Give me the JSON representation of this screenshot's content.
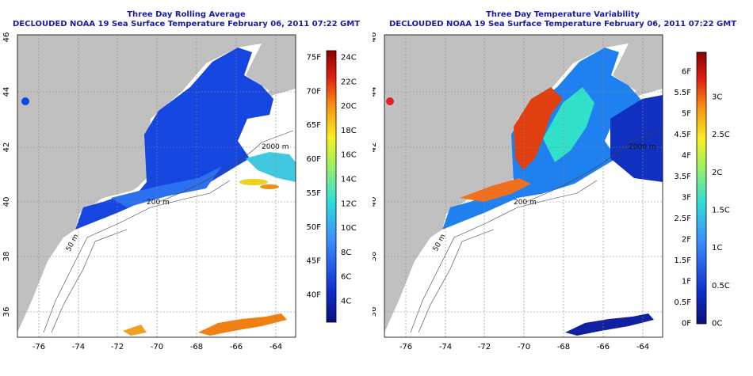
{
  "panels": [
    {
      "title": "Three Day Rolling Average",
      "subtitle": "DECLOUDED NOAA 19 Sea Surface Temperature February 06, 2011 07:22 GMT",
      "colorbar": {
        "fahrenheit": [
          "40F",
          "45F",
          "50F",
          "55F",
          "60F",
          "65F",
          "70F",
          "75F"
        ],
        "celsius": [
          "4C",
          "6C",
          "8C",
          "10C",
          "12C",
          "14C",
          "16C",
          "18C",
          "20C",
          "22C",
          "24C"
        ]
      }
    },
    {
      "title": "Three Day Temperature Variability",
      "subtitle": "DECLOUDED NOAA 19 Sea Surface Temperature February 06, 2011 07:22 GMT",
      "colorbar": {
        "fahrenheit": [
          "0F",
          "0.5F",
          "1F",
          "1.5F",
          "2F",
          "2.5F",
          "3F",
          "3.5F",
          "4F",
          "4.5F",
          "5F",
          "5.5F",
          "6F"
        ],
        "celsius": [
          "0C",
          "0.5C",
          "1C",
          "1.5C",
          "2C",
          "2.5C",
          "3C"
        ]
      }
    }
  ],
  "axes": {
    "longitude_ticks": [
      "-76",
      "-74",
      "-72",
      "-70",
      "-68",
      "-66",
      "-64"
    ],
    "latitude_ticks": [
      "36",
      "38",
      "40",
      "42",
      "44",
      "46"
    ]
  },
  "contours": {
    "shelf": "200 m",
    "slope": "2000 m",
    "inshore": "50 m"
  },
  "colors": {
    "title": "#1a1aa8",
    "land": "#c0c0c0",
    "ocean": "#ffffff"
  }
}
